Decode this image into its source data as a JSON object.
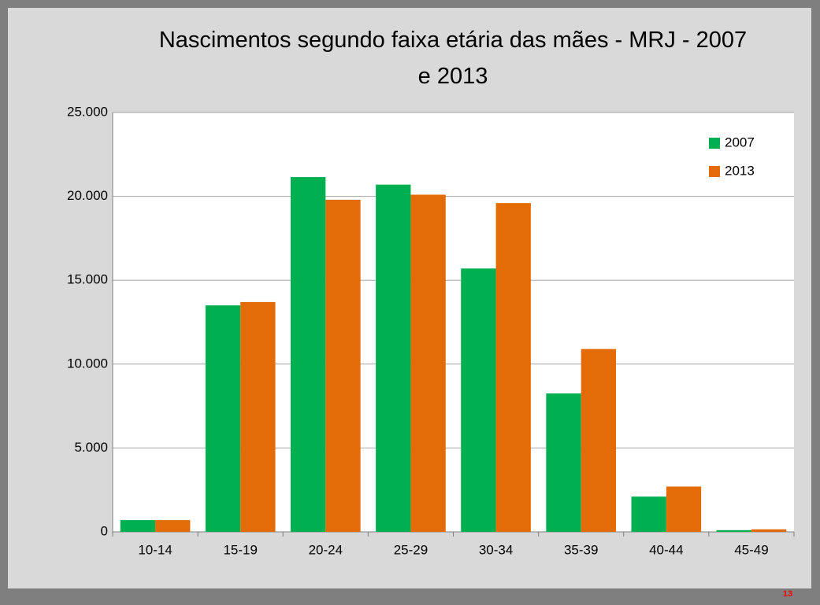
{
  "chart_data": {
    "type": "bar",
    "title": "Nascimentos segundo faixa etária das mães - MRJ - 2007 e 2013",
    "categories": [
      "10-14",
      "15-19",
      "20-24",
      "25-29",
      "30-34",
      "35-39",
      "40-44",
      "45-49"
    ],
    "series": [
      {
        "name": "2007",
        "color": "#00b050",
        "values": [
          700,
          13500,
          21150,
          20700,
          15700,
          8250,
          2100,
          100
        ]
      },
      {
        "name": "2013",
        "color": "#e36c09",
        "values": [
          700,
          13700,
          19800,
          20100,
          19600,
          10900,
          2700,
          150
        ]
      }
    ],
    "ylim": [
      0,
      25000
    ],
    "yticks": [
      0,
      {
        "value": 5000,
        "label": "5.000"
      },
      {
        "value": 10000,
        "label": "10.000"
      },
      {
        "value": 15000,
        "label": "15.000"
      },
      {
        "value": 20000,
        "label": "20.000"
      },
      {
        "value": 25000,
        "label": "25.000"
      }
    ],
    "grid": true,
    "legend": "top-right",
    "page_number": "13"
  }
}
